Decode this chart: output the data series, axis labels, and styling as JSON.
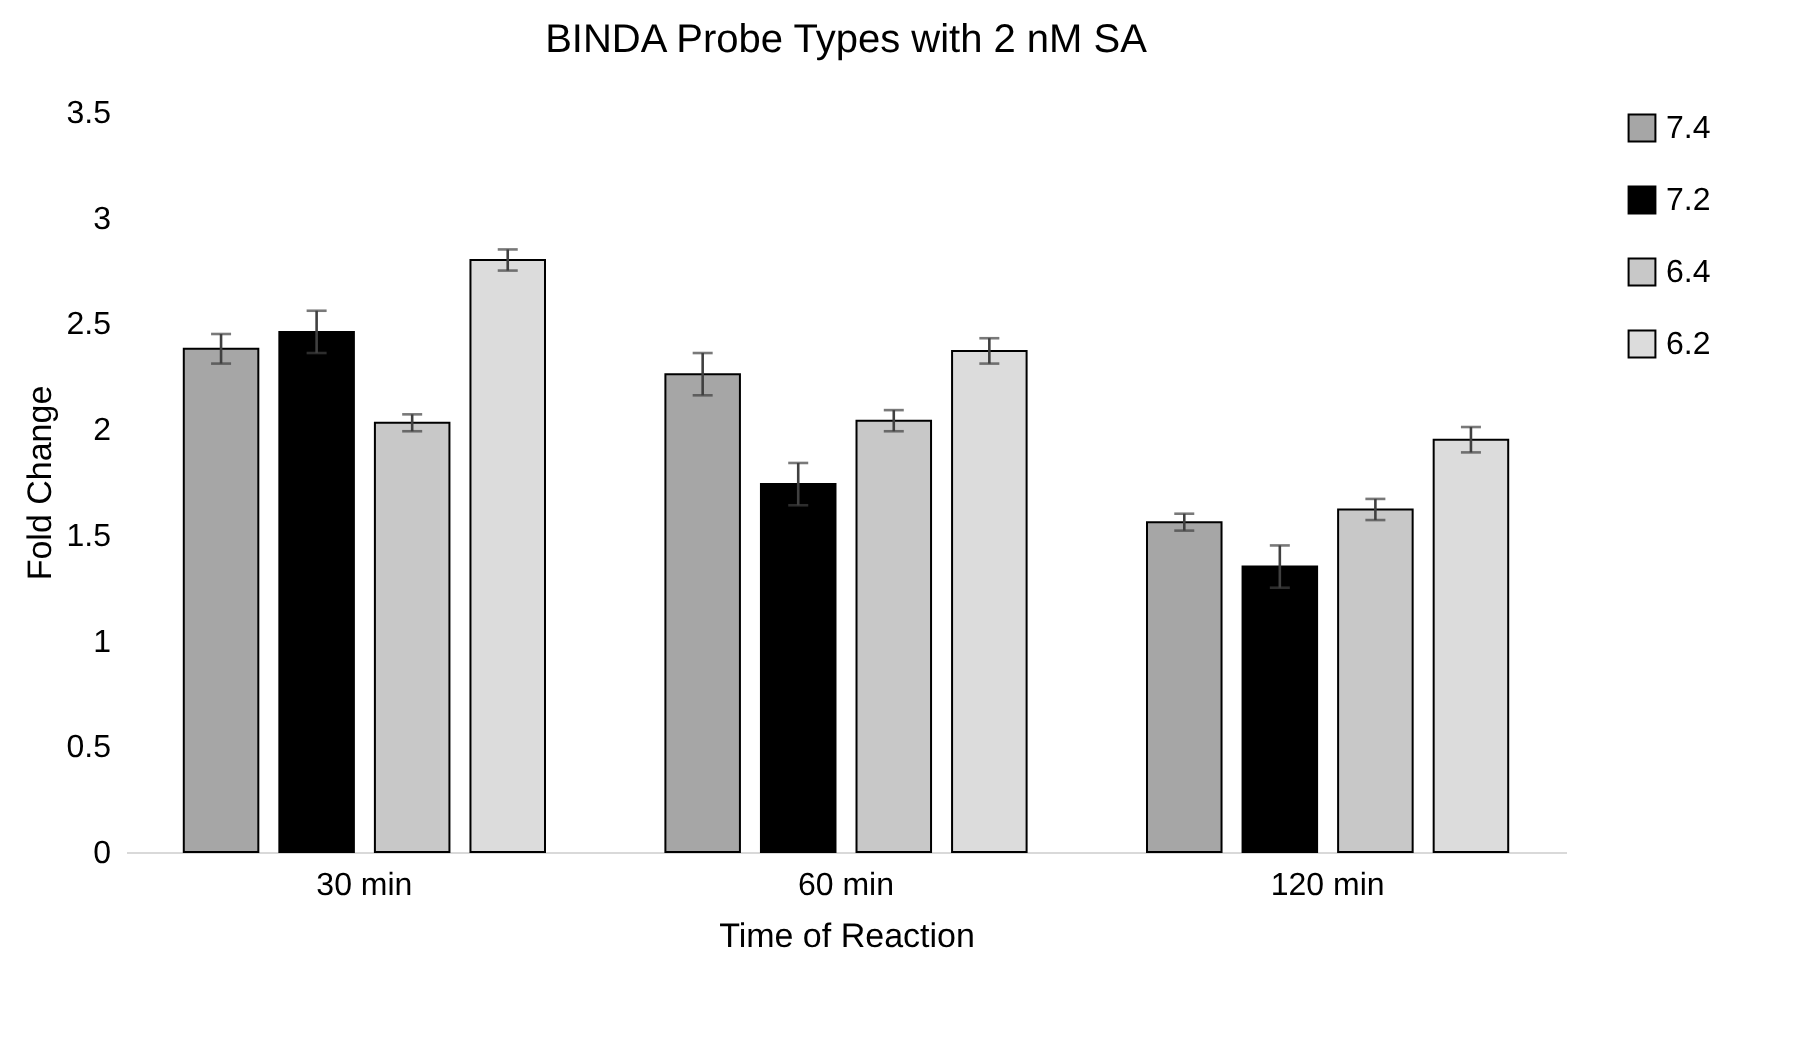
{
  "chart_data": {
    "type": "bar",
    "title": "BINDA Probe Types with 2 nM SA",
    "xlabel": "Time of Reaction",
    "ylabel": "Fold Change",
    "categories": [
      "30 min",
      "60 min",
      "120 min"
    ],
    "series": [
      {
        "name": "7.4",
        "color": "#a6a6a6",
        "values": [
          2.38,
          2.26,
          1.56
        ],
        "errors": [
          0.07,
          0.1,
          0.04
        ]
      },
      {
        "name": "7.2",
        "color": "#000000",
        "values": [
          2.46,
          1.74,
          1.35
        ],
        "errors": [
          0.1,
          0.1,
          0.1
        ]
      },
      {
        "name": "6.4",
        "color": "#c8c8c8",
        "values": [
          2.03,
          2.04,
          1.62
        ],
        "errors": [
          0.04,
          0.05,
          0.05
        ]
      },
      {
        "name": "6.2",
        "color": "#dcdcdc",
        "values": [
          2.8,
          2.37,
          1.95
        ],
        "errors": [
          0.05,
          0.06,
          0.06
        ]
      }
    ],
    "ylim": [
      0,
      3.5
    ],
    "yticks": [
      0,
      0.5,
      1,
      1.5,
      2,
      2.5,
      3,
      3.5
    ],
    "grid": false,
    "legend": "right"
  }
}
